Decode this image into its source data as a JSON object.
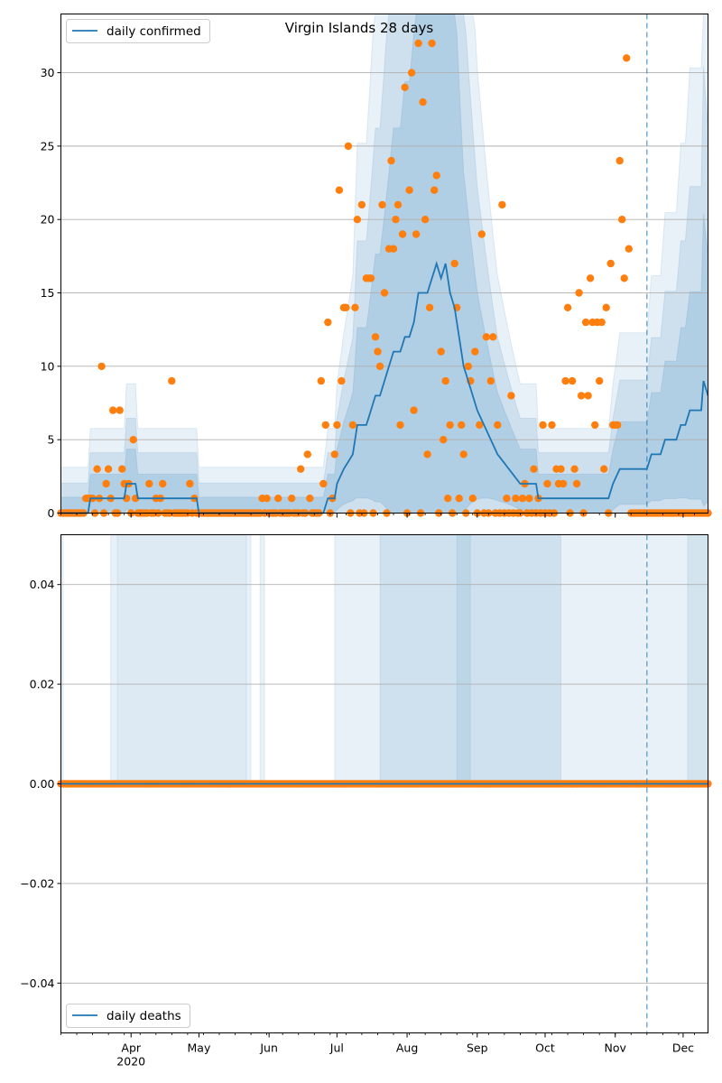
{
  "chart_data": [
    {
      "type": "line",
      "title": "Virgin Islands 28 days",
      "xlabel": "",
      "ylabel": "",
      "x_range": [
        "2020-03-01",
        "2020-12-12"
      ],
      "ylim": [
        0,
        34
      ],
      "y_ticks": [
        0,
        5,
        10,
        15,
        20,
        25,
        30
      ],
      "y_tick_labels": [
        "0",
        "5",
        "10",
        "15",
        "20",
        "25",
        "30"
      ],
      "grid": "horizontal",
      "legend": "top-left",
      "forecast_marker_date": "2020-11-15",
      "colors": {
        "line": "#1f77b4",
        "points": "#ff7f0e",
        "band": "#1f77b4",
        "grid": "#b0b0b0"
      },
      "series": [
        {
          "name": "daily confirmed",
          "kind": "line",
          "points": [
            [
              "2020-03-01",
              0
            ],
            [
              "2020-03-13",
              0
            ],
            [
              "2020-03-14",
              1
            ],
            [
              "2020-03-29",
              1
            ],
            [
              "2020-03-30",
              2
            ],
            [
              "2020-04-03",
              2
            ],
            [
              "2020-04-04",
              1
            ],
            [
              "2020-04-30",
              1
            ],
            [
              "2020-05-01",
              0
            ],
            [
              "2020-06-25",
              0
            ],
            [
              "2020-06-27",
              1
            ],
            [
              "2020-06-30",
              1
            ],
            [
              "2020-07-01",
              2
            ],
            [
              "2020-07-04",
              3
            ],
            [
              "2020-07-08",
              4
            ],
            [
              "2020-07-10",
              6
            ],
            [
              "2020-07-14",
              6
            ],
            [
              "2020-07-16",
              7
            ],
            [
              "2020-07-18",
              8
            ],
            [
              "2020-07-20",
              8
            ],
            [
              "2020-07-22",
              9
            ],
            [
              "2020-07-24",
              10
            ],
            [
              "2020-07-26",
              11
            ],
            [
              "2020-07-29",
              11
            ],
            [
              "2020-07-31",
              12
            ],
            [
              "2020-08-02",
              12
            ],
            [
              "2020-08-04",
              13
            ],
            [
              "2020-08-06",
              15
            ],
            [
              "2020-08-10",
              15
            ],
            [
              "2020-08-12",
              16
            ],
            [
              "2020-08-14",
              17
            ],
            [
              "2020-08-16",
              16
            ],
            [
              "2020-08-18",
              17
            ],
            [
              "2020-08-20",
              15
            ],
            [
              "2020-08-22",
              14
            ],
            [
              "2020-08-24",
              12
            ],
            [
              "2020-08-26",
              10
            ],
            [
              "2020-08-28",
              9
            ],
            [
              "2020-08-30",
              8
            ],
            [
              "2020-09-01",
              7
            ],
            [
              "2020-09-04",
              6
            ],
            [
              "2020-09-07",
              5
            ],
            [
              "2020-09-10",
              4
            ],
            [
              "2020-09-15",
              3
            ],
            [
              "2020-09-20",
              2
            ],
            [
              "2020-09-27",
              2
            ],
            [
              "2020-09-28",
              1
            ],
            [
              "2020-10-29",
              1
            ],
            [
              "2020-10-31",
              2
            ],
            [
              "2020-11-03",
              3
            ],
            [
              "2020-11-15",
              3
            ],
            [
              "2020-11-17",
              4
            ],
            [
              "2020-11-21",
              4
            ],
            [
              "2020-11-23",
              5
            ],
            [
              "2020-11-28",
              5
            ],
            [
              "2020-11-30",
              6
            ],
            [
              "2020-12-02",
              6
            ],
            [
              "2020-12-04",
              7
            ],
            [
              "2020-12-09",
              7
            ],
            [
              "2020-12-10",
              9
            ],
            [
              "2020-12-12",
              8
            ]
          ]
        },
        {
          "name": "",
          "kind": "scatter",
          "points": [
            [
              "2020-03-12",
              1
            ],
            [
              "2020-03-13",
              1
            ],
            [
              "2020-03-14",
              1
            ],
            [
              "2020-03-15",
              1
            ],
            [
              "2020-03-17",
              3
            ],
            [
              "2020-03-18",
              1
            ],
            [
              "2020-03-19",
              10
            ],
            [
              "2020-03-21",
              2
            ],
            [
              "2020-03-22",
              3
            ],
            [
              "2020-03-23",
              1
            ],
            [
              "2020-03-24",
              7
            ],
            [
              "2020-03-25",
              0
            ],
            [
              "2020-03-27",
              7
            ],
            [
              "2020-03-28",
              3
            ],
            [
              "2020-03-29",
              2
            ],
            [
              "2020-03-30",
              1
            ],
            [
              "2020-03-31",
              2
            ],
            [
              "2020-04-02",
              5
            ],
            [
              "2020-04-03",
              1
            ],
            [
              "2020-04-09",
              2
            ],
            [
              "2020-04-12",
              1
            ],
            [
              "2020-04-14",
              1
            ],
            [
              "2020-04-15",
              2
            ],
            [
              "2020-04-19",
              9
            ],
            [
              "2020-04-27",
              2
            ],
            [
              "2020-04-29",
              1
            ],
            [
              "2020-05-29",
              1
            ],
            [
              "2020-05-31",
              1
            ],
            [
              "2020-06-05",
              1
            ],
            [
              "2020-06-11",
              1
            ],
            [
              "2020-06-15",
              3
            ],
            [
              "2020-06-18",
              4
            ],
            [
              "2020-06-19",
              1
            ],
            [
              "2020-06-24",
              9
            ],
            [
              "2020-06-25",
              2
            ],
            [
              "2020-06-26",
              6
            ],
            [
              "2020-06-27",
              13
            ],
            [
              "2020-06-28",
              0
            ],
            [
              "2020-06-29",
              1
            ],
            [
              "2020-06-30",
              4
            ],
            [
              "2020-07-01",
              6
            ],
            [
              "2020-07-02",
              22
            ],
            [
              "2020-07-03",
              9
            ],
            [
              "2020-07-04",
              14
            ],
            [
              "2020-07-05",
              14
            ],
            [
              "2020-07-06",
              25
            ],
            [
              "2020-07-07",
              0
            ],
            [
              "2020-07-08",
              6
            ],
            [
              "2020-07-09",
              14
            ],
            [
              "2020-07-10",
              20
            ],
            [
              "2020-07-11",
              0
            ],
            [
              "2020-07-12",
              21
            ],
            [
              "2020-07-13",
              0
            ],
            [
              "2020-07-14",
              16
            ],
            [
              "2020-07-15",
              16
            ],
            [
              "2020-07-16",
              16
            ],
            [
              "2020-07-17",
              0
            ],
            [
              "2020-07-18",
              12
            ],
            [
              "2020-07-19",
              11
            ],
            [
              "2020-07-20",
              10
            ],
            [
              "2020-07-21",
              21
            ],
            [
              "2020-07-22",
              15
            ],
            [
              "2020-07-23",
              0
            ],
            [
              "2020-07-24",
              18
            ],
            [
              "2020-07-25",
              24
            ],
            [
              "2020-07-26",
              18
            ],
            [
              "2020-07-27",
              20
            ],
            [
              "2020-07-28",
              21
            ],
            [
              "2020-07-29",
              6
            ],
            [
              "2020-07-30",
              19
            ],
            [
              "2020-07-31",
              29
            ],
            [
              "2020-08-01",
              0
            ],
            [
              "2020-08-02",
              22
            ],
            [
              "2020-08-03",
              30
            ],
            [
              "2020-08-04",
              7
            ],
            [
              "2020-08-05",
              19
            ],
            [
              "2020-08-06",
              32
            ],
            [
              "2020-08-08",
              28
            ],
            [
              "2020-08-09",
              20
            ],
            [
              "2020-08-10",
              4
            ],
            [
              "2020-08-11",
              14
            ],
            [
              "2020-08-12",
              32
            ],
            [
              "2020-08-13",
              22
            ],
            [
              "2020-08-14",
              23
            ],
            [
              "2020-08-15",
              0
            ],
            [
              "2020-08-16",
              11
            ],
            [
              "2020-08-17",
              5
            ],
            [
              "2020-08-18",
              9
            ],
            [
              "2020-08-19",
              1
            ],
            [
              "2020-08-20",
              6
            ],
            [
              "2020-08-21",
              0
            ],
            [
              "2020-08-22",
              17
            ],
            [
              "2020-08-23",
              14
            ],
            [
              "2020-08-24",
              1
            ],
            [
              "2020-08-25",
              6
            ],
            [
              "2020-08-26",
              4
            ],
            [
              "2020-08-27",
              0
            ],
            [
              "2020-08-28",
              10
            ],
            [
              "2020-08-29",
              9
            ],
            [
              "2020-08-30",
              1
            ],
            [
              "2020-08-31",
              11
            ],
            [
              "2020-09-01",
              0
            ],
            [
              "2020-09-02",
              6
            ],
            [
              "2020-09-03",
              19
            ],
            [
              "2020-09-04",
              0
            ],
            [
              "2020-09-05",
              12
            ],
            [
              "2020-09-06",
              0
            ],
            [
              "2020-09-07",
              9
            ],
            [
              "2020-09-08",
              12
            ],
            [
              "2020-09-09",
              0
            ],
            [
              "2020-09-10",
              6
            ],
            [
              "2020-09-11",
              0
            ],
            [
              "2020-09-12",
              21
            ],
            [
              "2020-09-13",
              0
            ],
            [
              "2020-09-14",
              1
            ],
            [
              "2020-09-15",
              0
            ],
            [
              "2020-09-16",
              8
            ],
            [
              "2020-09-17",
              0
            ],
            [
              "2020-09-18",
              1
            ],
            [
              "2020-09-19",
              0
            ],
            [
              "2020-09-20",
              0
            ],
            [
              "2020-09-21",
              1
            ],
            [
              "2020-09-22",
              2
            ],
            [
              "2020-09-23",
              0
            ],
            [
              "2020-09-24",
              1
            ],
            [
              "2020-09-25",
              0
            ],
            [
              "2020-09-26",
              3
            ],
            [
              "2020-09-27",
              0
            ],
            [
              "2020-09-28",
              1
            ],
            [
              "2020-09-29",
              0
            ],
            [
              "2020-09-30",
              6
            ],
            [
              "2020-10-01",
              0
            ],
            [
              "2020-10-02",
              2
            ],
            [
              "2020-10-03",
              0
            ],
            [
              "2020-10-04",
              6
            ],
            [
              "2020-10-05",
              0
            ],
            [
              "2020-10-06",
              3
            ],
            [
              "2020-10-07",
              2
            ],
            [
              "2020-10-08",
              3
            ],
            [
              "2020-10-09",
              2
            ],
            [
              "2020-10-10",
              9
            ],
            [
              "2020-10-11",
              14
            ],
            [
              "2020-10-12",
              0
            ],
            [
              "2020-10-13",
              9
            ],
            [
              "2020-10-14",
              3
            ],
            [
              "2020-10-15",
              2
            ],
            [
              "2020-10-16",
              15
            ],
            [
              "2020-10-17",
              8
            ],
            [
              "2020-10-18",
              0
            ],
            [
              "2020-10-19",
              13
            ],
            [
              "2020-10-20",
              8
            ],
            [
              "2020-10-21",
              16
            ],
            [
              "2020-10-22",
              13
            ],
            [
              "2020-10-23",
              6
            ],
            [
              "2020-10-24",
              13
            ],
            [
              "2020-10-25",
              9
            ],
            [
              "2020-10-26",
              13
            ],
            [
              "2020-10-27",
              3
            ],
            [
              "2020-10-28",
              14
            ],
            [
              "2020-10-29",
              0
            ],
            [
              "2020-10-30",
              17
            ],
            [
              "2020-10-31",
              6
            ],
            [
              "2020-11-01",
              6
            ],
            [
              "2020-11-02",
              6
            ],
            [
              "2020-11-03",
              24
            ],
            [
              "2020-11-04",
              20
            ],
            [
              "2020-11-05",
              16
            ],
            [
              "2020-11-06",
              31
            ],
            [
              "2020-11-07",
              18
            ],
            [
              "2020-11-08",
              0
            ]
          ]
        }
      ]
    },
    {
      "type": "line",
      "title": "",
      "xlabel": "",
      "ylabel": "",
      "x_range": [
        "2020-03-01",
        "2020-12-12"
      ],
      "ylim": [
        -0.05,
        0.05
      ],
      "y_ticks": [
        -0.04,
        -0.02,
        0,
        0.02,
        0.04
      ],
      "y_tick_labels": [
        "−0.04",
        "−0.02",
        "0.00",
        "0.02",
        "0.04"
      ],
      "x_ticks": [
        "2020-04-01",
        "2020-05-01",
        "2020-06-01",
        "2020-07-01",
        "2020-08-01",
        "2020-09-01",
        "2020-10-01",
        "2020-11-01",
        "2020-12-01"
      ],
      "x_tick_labels": [
        "Apr\n2020",
        "May",
        "Jun",
        "Jul",
        "Aug",
        "Sep",
        "Oct",
        "Nov",
        "Dec"
      ],
      "grid": "horizontal",
      "legend": "bottom-left",
      "forecast_marker_date": "2020-11-15",
      "series": [
        {
          "name": "daily deaths",
          "kind": "line",
          "points": [
            [
              "2020-03-01",
              0
            ],
            [
              "2020-12-12",
              0
            ]
          ]
        },
        {
          "name": "",
          "kind": "scatter",
          "constant_value": 0,
          "from": "2020-03-01",
          "to": "2020-12-12"
        }
      ]
    }
  ]
}
